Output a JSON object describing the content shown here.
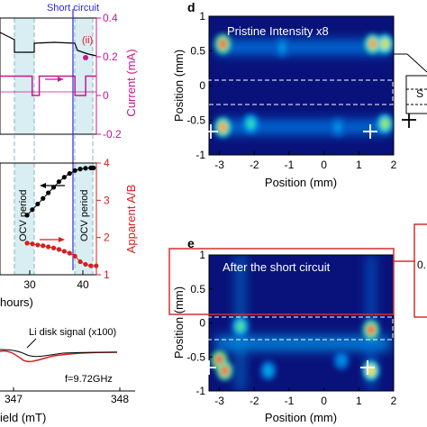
{
  "colors": {
    "current": "#c8168f",
    "ratio": "#d41f1f",
    "short_line": "#2a2ad0",
    "ocv_band": "#d8eef2",
    "ocv_dash": "#86b6c4",
    "heat_low": "#08127a",
    "heat_high": "#ff3010",
    "callout": "#d23030"
  },
  "left": {
    "top": {
      "header_label": "Short circuit",
      "ylabel": "Current (mA)",
      "yticks": [
        "0.4",
        "0.2",
        "0",
        "-0.2"
      ],
      "annotation": "(ii)"
    },
    "middle": {
      "ylabel": "Apparent A/B",
      "yticks": [
        "4",
        "3",
        "2",
        "1"
      ],
      "xticks": [
        "30",
        "40"
      ],
      "xlabel": "hours)",
      "ocv_label_1": "OCV period",
      "ocv_label_2": "OCV period"
    },
    "bottom": {
      "legend": "Li disk signal (x100)",
      "freq": "f=9.72GHz",
      "xticks": [
        "347",
        "348"
      ],
      "xlabel": "ield (mT)"
    }
  },
  "panel_d": {
    "letter": "d",
    "title": "Pristine  Intensity x8",
    "ylabel": "Position (mm)",
    "xlabel": "Position (mm)",
    "xticks": [
      "-3",
      "-2",
      "-1",
      "0",
      "1",
      "2"
    ],
    "yticks": [
      "1",
      "0.5",
      "0",
      "-0.5",
      "-1"
    ],
    "side_label": "S"
  },
  "panel_e": {
    "letter": "e",
    "title": "After the short circuit",
    "ylabel": "Position (mm)",
    "xlabel": "Position (mm)",
    "xticks": [
      "-3",
      "-2",
      "-1",
      "0",
      "1",
      "2"
    ],
    "yticks": [
      "1",
      "0.5",
      "0",
      "-0.5",
      "-1"
    ],
    "side_label": "0."
  },
  "chart_data": [
    {
      "type": "line",
      "panel": "current-vs-time",
      "ylabel": "Current (mA)",
      "ylim": [
        -0.2,
        0.4
      ],
      "series": [
        {
          "name": "",
          "x": [
            18,
            27,
            27,
            29,
            29,
            39,
            39,
            42,
            42,
            45
          ],
          "values": [
            0.1,
            0.1,
            0,
            0,
            0.1,
            0.1,
            0,
            0,
            0.1,
            0.1
          ]
        }
      ],
      "markers": [
        {
          "label": "Short circuit",
          "x": 39
        }
      ]
    },
    {
      "type": "scatter",
      "panel": "apparent-ratio-vs-time",
      "ylabel": "Apparent A/B",
      "ylim": [
        1,
        4
      ],
      "xlabel": "hours)",
      "series": [
        {
          "name": "",
          "x": [
            29.5,
            30.5,
            31.5,
            32.5,
            33.5,
            34.5,
            35.5,
            36.5,
            37.5,
            38.5,
            39.5,
            40.5,
            41.5,
            42
          ],
          "values": [
            2.6,
            2.75,
            2.9,
            3.05,
            3.2,
            3.35,
            3.5,
            3.62,
            3.72,
            3.8,
            3.84,
            3.86,
            3.87,
            3.87
          ]
        },
        {
          "name": "",
          "x": [
            29.5,
            30.5,
            31.5,
            32.5,
            33.5,
            34.5,
            35.5,
            36.5,
            37.5,
            38.5,
            39.5,
            40.5,
            41.5,
            42.5
          ],
          "values": [
            1.85,
            1.83,
            1.8,
            1.78,
            1.75,
            1.72,
            1.68,
            1.63,
            1.58,
            1.5,
            1.35,
            1.28,
            1.24,
            1.24
          ]
        }
      ]
    },
    {
      "type": "heatmap",
      "panel": "d",
      "xlim": [
        -3.3,
        2
      ],
      "ylim": [
        -1,
        1
      ],
      "hotspots": [
        {
          "x": -2.9,
          "y": 0.6,
          "v": 0.95
        },
        {
          "x": -2.9,
          "y": -0.6,
          "v": 0.9
        },
        {
          "x": -2.1,
          "y": -0.55,
          "v": 0.55
        },
        {
          "x": 1.4,
          "y": 0.6,
          "v": 0.9
        },
        {
          "x": 1.75,
          "y": 0.6,
          "v": 0.8
        },
        {
          "x": 1.75,
          "y": -0.55,
          "v": 0.7
        },
        {
          "x": -1.2,
          "y": 0.55,
          "v": 0.35
        },
        {
          "x": 0.4,
          "y": -0.6,
          "v": 0.35
        }
      ],
      "bands": [
        {
          "y": 0.55,
          "v": 0.3
        },
        {
          "y": -0.6,
          "v": 0.3
        }
      ]
    },
    {
      "type": "heatmap",
      "panel": "e",
      "xlim": [
        -3.3,
        2
      ],
      "ylim": [
        -1,
        1
      ],
      "hotspots": [
        {
          "x": -3.0,
          "y": -0.55,
          "v": 1.0
        },
        {
          "x": -2.85,
          "y": -0.7,
          "v": 0.95
        },
        {
          "x": -2.4,
          "y": -0.05,
          "v": 0.6
        },
        {
          "x": 1.35,
          "y": -0.1,
          "v": 0.95
        },
        {
          "x": 1.35,
          "y": -0.7,
          "v": 0.85
        },
        {
          "x": -1.6,
          "y": -0.7,
          "v": 0.4
        },
        {
          "x": 0.5,
          "y": -0.55,
          "v": 0.35
        }
      ],
      "bands": [
        {
          "y": -0.3,
          "v": 0.35
        }
      ],
      "columns": [
        {
          "x": -2.4,
          "v": 0.35
        },
        {
          "x": 1.35,
          "v": 0.3
        }
      ]
    }
  ]
}
